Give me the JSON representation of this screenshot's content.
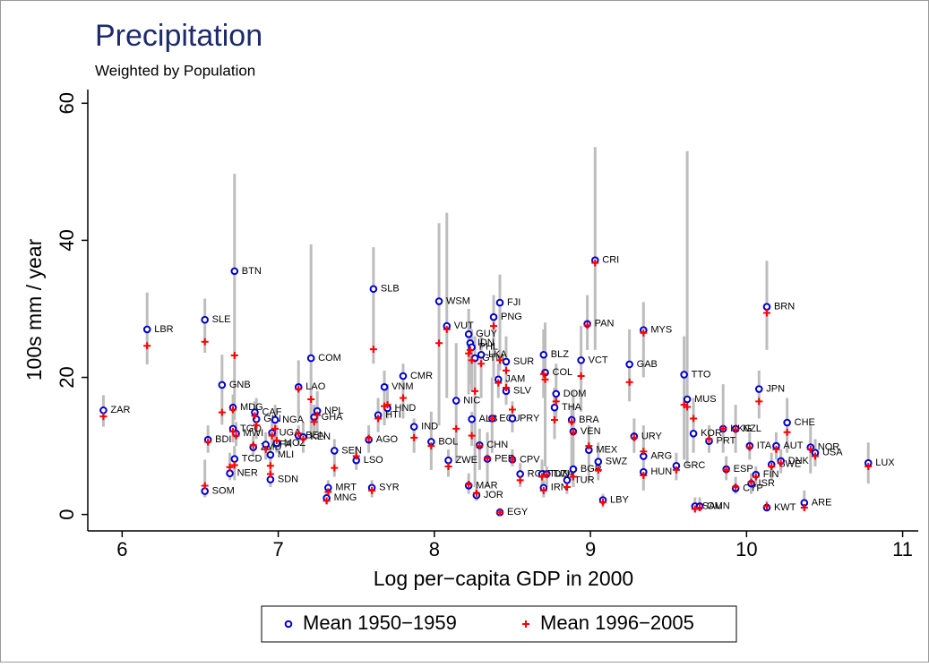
{
  "chart_data": {
    "type": "scatter",
    "title": "Precipitation",
    "subtitle": "Weighted by Population",
    "x_label": "Log per−capita GDP in 2000",
    "y_label": "100s mm / year",
    "xlim": [
      5.78,
      11.1
    ],
    "ylim": [
      -2.4,
      62
    ],
    "xticks": [
      6,
      7,
      8,
      9,
      10,
      11
    ],
    "yticks": [
      0,
      20,
      40,
      60
    ],
    "grid": false,
    "legend": "bottom",
    "range_color": "#bdbdbd",
    "labels": [
      "ZAR",
      "LBR",
      "SLE",
      "SOM",
      "BDI",
      "GNB",
      "NER",
      "MDG",
      "TGO",
      "BTN",
      "TCD",
      "MWI",
      "ZMB",
      "CAF",
      "GIN",
      "BFA",
      "MLI",
      "SDN",
      "UGA",
      "NGA",
      "MOZ",
      "LAO",
      "BEN",
      "KEN",
      "COM",
      "GHA",
      "NPL",
      "MNG",
      "MRT",
      "SEN",
      "LSO",
      "AGO",
      "SYR",
      "SLB",
      "HTI",
      "HND",
      "VNM",
      "CMR",
      "IND",
      "BOL",
      "WSM",
      "ZWE",
      "VUT",
      "NIC",
      "GUY",
      "IDN",
      "PHL",
      "ALB",
      "MAR",
      "GTM",
      "JOR",
      "CHN",
      "LKA",
      "PER",
      "ECU",
      "PNG",
      "JAM",
      "FJI",
      "EGY",
      "SLV",
      "SUR",
      "PRY",
      "CPV",
      "ROM",
      "TUN",
      "IRN",
      "BLZ",
      "COL",
      "DZA",
      "DOM",
      "THA",
      "BRA",
      "VEN",
      "BGR",
      "TUR",
      "VCT",
      "PAN",
      "MEX",
      "CRI",
      "SWZ",
      "LBY",
      "GAB",
      "URY",
      "MYS",
      "ARG",
      "HUN",
      "GRC",
      "TTO",
      "MUS",
      "KOR",
      "SAU",
      "OMN",
      "PRT",
      "HKG",
      "ESP",
      "NZL",
      "CYP",
      "ITA",
      "JPN",
      "FIN",
      "ISR",
      "KWT",
      "BRN",
      "SWE",
      "AUT",
      "DNK",
      "CHE",
      "NOR",
      "USA",
      "ARE",
      "LUX"
    ],
    "x": [
      5.88,
      6.16,
      6.53,
      6.53,
      6.55,
      6.64,
      6.69,
      6.71,
      6.71,
      6.72,
      6.72,
      6.73,
      6.84,
      6.85,
      6.86,
      6.92,
      6.95,
      6.95,
      6.96,
      6.98,
      6.99,
      7.13,
      7.13,
      7.16,
      7.21,
      7.23,
      7.25,
      7.31,
      7.32,
      7.36,
      7.5,
      7.58,
      7.6,
      7.61,
      7.64,
      7.7,
      7.68,
      7.8,
      7.87,
      7.98,
      8.03,
      8.09,
      8.08,
      8.14,
      8.22,
      8.23,
      8.24,
      8.24,
      8.22,
      8.26,
      8.27,
      8.29,
      8.3,
      8.34,
      8.37,
      8.38,
      8.41,
      8.42,
      8.42,
      8.46,
      8.46,
      8.5,
      8.5,
      8.55,
      8.69,
      8.7,
      8.7,
      8.71,
      8.72,
      8.78,
      8.77,
      8.88,
      8.89,
      8.89,
      8.85,
      8.94,
      8.98,
      8.99,
      9.03,
      9.05,
      9.08,
      9.25,
      9.28,
      9.34,
      9.34,
      9.34,
      9.55,
      9.6,
      9.62,
      9.66,
      9.67,
      9.7,
      9.76,
      9.85,
      9.87,
      9.93,
      9.93,
      10.02,
      10.08,
      10.06,
      10.03,
      10.13,
      10.13,
      10.16,
      10.19,
      10.22,
      10.26,
      10.41,
      10.44,
      10.37,
      10.78
    ],
    "series": [
      {
        "name": "Mean 1950−1959",
        "color": "#0000cc",
        "values": [
          15.2,
          27.0,
          28.4,
          3.4,
          10.9,
          18.9,
          6.0,
          15.6,
          12.5,
          35.5,
          8.1,
          11.8,
          9.8,
          14.9,
          13.9,
          10.2,
          8.7,
          5.1,
          11.9,
          13.8,
          10.4,
          18.6,
          11.5,
          11.3,
          22.8,
          14.2,
          15.1,
          2.4,
          3.9,
          9.3,
          7.9,
          10.9,
          3.9,
          32.9,
          14.5,
          15.5,
          18.6,
          20.2,
          12.8,
          10.6,
          31.1,
          7.9,
          27.5,
          16.6,
          26.3,
          25.0,
          24.4,
          13.9,
          4.2,
          22.8,
          2.8,
          10.1,
          23.3,
          8.1,
          14.0,
          28.8,
          19.7,
          30.9,
          0.3,
          18.0,
          22.3,
          14.0,
          8.0,
          5.9,
          5.9,
          3.9,
          23.3,
          20.7,
          5.9,
          17.6,
          15.6,
          13.8,
          12.1,
          6.6,
          5.0,
          22.5,
          27.8,
          9.4,
          37.1,
          7.7,
          2.1,
          21.9,
          11.4,
          26.9,
          8.5,
          6.2,
          7.1,
          20.4,
          16.8,
          11.8,
          1.2,
          1.2,
          10.7,
          12.5,
          6.6,
          12.5,
          3.8,
          10.0,
          18.3,
          5.8,
          4.5,
          1.0,
          30.3,
          7.3,
          10.0,
          7.8,
          13.4,
          9.8,
          9.0,
          1.7,
          7.5
        ]
      },
      {
        "name": "Mean 1996−2005",
        "color": "#ff0000",
        "values": [
          14.3,
          24.6,
          25.2,
          4.2,
          10.6,
          14.9,
          6.9,
          15.3,
          12.1,
          23.2,
          7.2,
          11.5,
          10.1,
          14.4,
          13.0,
          9.5,
          7.1,
          5.9,
          11.5,
          12.5,
          10.8,
          18.3,
          11.8,
          11.0,
          16.8,
          13.5,
          14.5,
          2.0,
          3.3,
          6.8,
          8.5,
          11.1,
          3.5,
          24.1,
          14.0,
          16.0,
          15.8,
          17.0,
          11.2,
          10.0,
          25.0,
          7.0,
          27.0,
          12.5,
          23.5,
          24.0,
          22.5,
          11.5,
          4.4,
          18.0,
          3.1,
          10.0,
          22.0,
          8.2,
          14.0,
          27.5,
          19.2,
          22.5,
          0.3,
          18.5,
          21.0,
          15.3,
          8.0,
          5.0,
          5.5,
          3.5,
          20.5,
          19.7,
          5.8,
          16.5,
          13.8,
          13.5,
          12.0,
          5.5,
          4.0,
          20.2,
          27.6,
          10.0,
          36.7,
          6.5,
          1.8,
          19.3,
          11.2,
          26.5,
          9.2,
          5.7,
          6.5,
          16.0,
          15.7,
          14.0,
          0.8,
          1.0,
          11.0,
          12.5,
          6.5,
          12.4,
          4.0,
          9.8,
          16.5,
          5.5,
          4.7,
          1.2,
          29.4,
          7.0,
          9.5,
          7.5,
          12.0,
          9.5,
          8.5,
          1.0,
          7.0
        ]
      }
    ],
    "range_low": [
      12.8,
      21.9,
      23.6,
      2.5,
      9,
      13.1,
      5,
      13.5,
      10.5,
      13.8,
      5,
      10,
      8.5,
      13,
      11,
      8,
      5.5,
      4,
      10,
      10,
      9,
      14,
      10,
      9,
      11,
      12,
      12,
      1.5,
      2.5,
      5.5,
      6.5,
      9,
      2.5,
      22,
      12,
      14,
      13,
      14,
      9,
      6.5,
      13,
      5.5,
      17,
      7.5,
      17.5,
      19,
      18,
      10,
      3,
      4,
      2,
      6.5,
      17,
      4,
      9,
      20,
      17,
      21,
      0,
      16,
      17,
      12,
      7,
      4,
      3.5,
      2.5,
      17,
      7,
      4,
      14,
      11,
      5,
      4,
      4,
      3,
      15,
      24,
      5,
      24,
      5,
      1,
      16.5,
      9,
      20,
      3.5,
      5,
      5,
      8,
      7,
      9,
      0.3,
      0.5,
      9,
      9,
      5,
      9,
      3,
      8,
      14,
      4,
      3,
      0.5,
      24,
      5,
      8,
      6,
      9,
      6,
      7,
      0.5,
      4.5
    ],
    "range_high": [
      17.4,
      32.4,
      31.5,
      8,
      13,
      23.3,
      9,
      17.5,
      14.5,
      49.7,
      10,
      13.5,
      11.5,
      16.5,
      17,
      12,
      10,
      7,
      14,
      16,
      13,
      22.5,
      13,
      13.5,
      39.4,
      16,
      18,
      3.5,
      5,
      11,
      10,
      13,
      5,
      39,
      17,
      19,
      21,
      22,
      14,
      15,
      42.5,
      9.5,
      44,
      25,
      30,
      28,
      27,
      15,
      6,
      26,
      4,
      12.5,
      26,
      12,
      20,
      32,
      22,
      35,
      1,
      21,
      26,
      16.5,
      9.5,
      7.5,
      8,
      5,
      27,
      28,
      7,
      22,
      18.5,
      16,
      18,
      7.5,
      6.5,
      27.5,
      32,
      13,
      53.6,
      10.5,
      3,
      27,
      14,
      31,
      13,
      7,
      9,
      26,
      53,
      17,
      2.5,
      2.5,
      13,
      19,
      8.5,
      16,
      5.5,
      12,
      21,
      7,
      6,
      2,
      37,
      9,
      12,
      9.5,
      17,
      13,
      11,
      3.5,
      10.5
    ]
  }
}
